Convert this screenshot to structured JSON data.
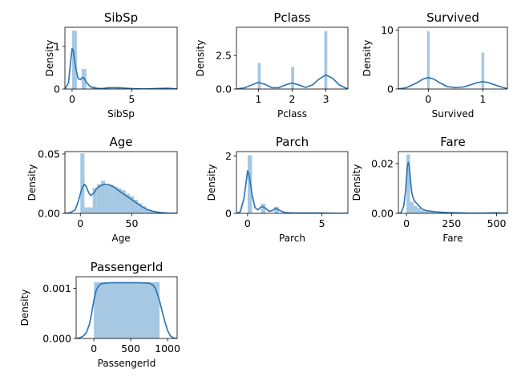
{
  "chart_data": [
    {
      "type": "bar",
      "title": "SibSp",
      "xlabel": "SibSp",
      "ylabel": "Density",
      "xlim": [
        -0.6,
        8.8
      ],
      "ylim": [
        0,
        1.45
      ],
      "xticks": [
        0,
        5
      ],
      "yticks": [
        0,
        1
      ],
      "bars": [
        {
          "x0": 0.0,
          "x1": 0.4,
          "h": 1.37
        },
        {
          "x0": 0.8,
          "x1": 1.2,
          "h": 0.47
        },
        {
          "x0": 1.6,
          "x1": 2.0,
          "h": 0.06
        },
        {
          "x0": 2.8,
          "x1": 3.2,
          "h": 0.04
        },
        {
          "x0": 3.6,
          "x1": 4.0,
          "h": 0.05
        },
        {
          "x0": 4.8,
          "x1": 5.2,
          "h": 0.02
        },
        {
          "x0": 7.6,
          "x1": 8.0,
          "h": 0.02
        }
      ],
      "kde": {
        "x": [
          -0.6,
          -0.3,
          -0.1,
          0.0,
          0.1,
          0.3,
          0.5,
          0.7,
          0.85,
          1.0,
          1.2,
          1.5,
          2.0,
          2.5,
          3.0,
          3.5,
          4.0,
          4.5,
          5.0,
          6.0,
          7.0,
          8.0,
          8.8
        ],
        "y": [
          0.0,
          0.15,
          0.7,
          0.95,
          0.9,
          0.5,
          0.25,
          0.22,
          0.27,
          0.26,
          0.16,
          0.06,
          0.02,
          0.01,
          0.03,
          0.03,
          0.03,
          0.02,
          0.01,
          0.0,
          0.01,
          0.02,
          0.0
        ]
      }
    },
    {
      "type": "bar",
      "title": "Pclass",
      "xlabel": "Pclass",
      "ylabel": "Density",
      "xlim": [
        0.35,
        3.65
      ],
      "ylim": [
        0,
        4.6
      ],
      "xticks": [
        1,
        2,
        3
      ],
      "yticks": [
        0.0,
        2.5
      ],
      "ytick_labels": [
        "0.0",
        "2.5"
      ],
      "bars": [
        {
          "x0": 0.98,
          "x1": 1.07,
          "h": 1.95
        },
        {
          "x0": 1.97,
          "x1": 2.06,
          "h": 1.65
        },
        {
          "x0": 2.95,
          "x1": 3.04,
          "h": 4.3
        }
      ],
      "kde": {
        "x": [
          0.35,
          0.6,
          0.8,
          1.0,
          1.2,
          1.4,
          1.6,
          1.8,
          2.0,
          2.2,
          2.4,
          2.6,
          2.8,
          3.0,
          3.2,
          3.4,
          3.65
        ],
        "y": [
          0.0,
          0.1,
          0.3,
          0.5,
          0.35,
          0.1,
          0.1,
          0.3,
          0.45,
          0.3,
          0.12,
          0.3,
          0.75,
          1.05,
          0.8,
          0.3,
          0.0
        ]
      }
    },
    {
      "type": "bar",
      "title": "Survived",
      "xlabel": "Survived",
      "ylabel": "Density",
      "xlim": [
        -0.55,
        1.45
      ],
      "ylim": [
        0,
        10.5
      ],
      "xticks": [
        0,
        1
      ],
      "yticks": [
        0,
        10
      ],
      "bars": [
        {
          "x0": -0.025,
          "x1": 0.025,
          "h": 9.8
        },
        {
          "x0": 0.975,
          "x1": 1.025,
          "h": 6.2
        }
      ],
      "kde": {
        "x": [
          -0.55,
          -0.4,
          -0.2,
          -0.1,
          0.0,
          0.1,
          0.2,
          0.35,
          0.5,
          0.65,
          0.8,
          0.9,
          1.0,
          1.1,
          1.25,
          1.45
        ],
        "y": [
          0.0,
          0.25,
          1.1,
          1.7,
          1.95,
          1.7,
          1.1,
          0.4,
          0.25,
          0.35,
          0.8,
          1.1,
          1.25,
          1.1,
          0.6,
          0.05
        ]
      }
    },
    {
      "type": "bar",
      "title": "Age",
      "xlabel": "Age",
      "ylabel": "Density",
      "xlim": [
        -15,
        94
      ],
      "ylim": [
        0,
        0.052
      ],
      "xticks": [
        0,
        50
      ],
      "yticks": [
        0.0,
        0.05
      ],
      "ytick_labels": [
        "0.00",
        "0.05"
      ],
      "bars": [
        {
          "x0": 0,
          "x1": 4,
          "h": 0.0505
        },
        {
          "x0": 4,
          "x1": 8,
          "h": 0.005
        },
        {
          "x0": 8,
          "x1": 12,
          "h": 0.005
        },
        {
          "x0": 12,
          "x1": 16,
          "h": 0.0215
        },
        {
          "x0": 16,
          "x1": 20,
          "h": 0.0245
        },
        {
          "x0": 20,
          "x1": 24,
          "h": 0.0275
        },
        {
          "x0": 24,
          "x1": 28,
          "h": 0.0235
        },
        {
          "x0": 28,
          "x1": 32,
          "h": 0.024
        },
        {
          "x0": 32,
          "x1": 36,
          "h": 0.0225
        },
        {
          "x0": 36,
          "x1": 40,
          "h": 0.021
        },
        {
          "x0": 40,
          "x1": 44,
          "h": 0.0195
        },
        {
          "x0": 44,
          "x1": 48,
          "h": 0.0165
        },
        {
          "x0": 48,
          "x1": 52,
          "h": 0.0145
        },
        {
          "x0": 52,
          "x1": 56,
          "h": 0.0115
        },
        {
          "x0": 56,
          "x1": 60,
          "h": 0.0085
        },
        {
          "x0": 60,
          "x1": 64,
          "h": 0.006
        },
        {
          "x0": 64,
          "x1": 68,
          "h": 0.0035
        },
        {
          "x0": 68,
          "x1": 72,
          "h": 0.002
        },
        {
          "x0": 72,
          "x1": 76,
          "h": 0.0015
        },
        {
          "x0": 76,
          "x1": 80,
          "h": 0.0008
        }
      ],
      "kde": {
        "x": [
          -15,
          -10,
          -5,
          -2,
          0,
          2,
          4,
          6,
          8,
          10,
          13,
          16,
          20,
          24,
          28,
          32,
          36,
          40,
          45,
          50,
          55,
          60,
          65,
          70,
          75,
          80,
          86,
          94
        ],
        "y": [
          0.0,
          0.0005,
          0.003,
          0.01,
          0.0165,
          0.022,
          0.0245,
          0.022,
          0.0175,
          0.015,
          0.017,
          0.021,
          0.0235,
          0.0245,
          0.024,
          0.0225,
          0.02,
          0.0175,
          0.0145,
          0.0115,
          0.0085,
          0.0055,
          0.0032,
          0.0018,
          0.001,
          0.0005,
          0.0002,
          0.0
        ]
      }
    },
    {
      "type": "bar",
      "title": "Parch",
      "xlabel": "Parch",
      "ylabel": "Density",
      "xlim": [
        -0.75,
        6.75
      ],
      "ylim": [
        0,
        2.15
      ],
      "xticks": [
        0,
        5
      ],
      "yticks": [
        0,
        2
      ],
      "bars": [
        {
          "x0": 0.0,
          "x1": 0.3,
          "h": 2.02
        },
        {
          "x0": 0.9,
          "x1": 1.2,
          "h": 0.34
        },
        {
          "x0": 1.8,
          "x1": 2.1,
          "h": 0.23
        },
        {
          "x0": 2.7,
          "x1": 3.0,
          "h": 0.02
        },
        {
          "x0": 4.8,
          "x1": 5.1,
          "h": 0.02
        }
      ],
      "kde": {
        "x": [
          -0.75,
          -0.5,
          -0.25,
          -0.1,
          0.0,
          0.1,
          0.3,
          0.5,
          0.7,
          0.85,
          1.0,
          1.2,
          1.45,
          1.7,
          1.85,
          2.0,
          2.2,
          2.5,
          3.0,
          4.0,
          5.0,
          6.0,
          6.75
        ],
        "y": [
          0.0,
          0.05,
          0.5,
          1.1,
          1.48,
          1.35,
          0.65,
          0.2,
          0.12,
          0.2,
          0.24,
          0.18,
          0.07,
          0.1,
          0.17,
          0.15,
          0.09,
          0.03,
          0.01,
          0.01,
          0.01,
          0.0,
          0.0
        ]
      }
    },
    {
      "type": "bar",
      "title": "Fare",
      "xlabel": "Fare",
      "ylabel": "Density",
      "xlim": [
        -45,
        560
      ],
      "ylim": [
        0,
        0.0248
      ],
      "xticks": [
        0,
        250,
        500
      ],
      "yticks": [
        0.0,
        0.02
      ],
      "ytick_labels": [
        "0.00",
        "0.02"
      ],
      "bars": [
        {
          "x0": 0,
          "x1": 20,
          "h": 0.0237
        },
        {
          "x0": 20,
          "x1": 40,
          "h": 0.0046
        },
        {
          "x0": 40,
          "x1": 60,
          "h": 0.003
        },
        {
          "x0": 60,
          "x1": 80,
          "h": 0.0022
        },
        {
          "x0": 80,
          "x1": 100,
          "h": 0.0012
        },
        {
          "x0": 100,
          "x1": 120,
          "h": 0.0008
        },
        {
          "x0": 120,
          "x1": 140,
          "h": 0.0006
        },
        {
          "x0": 140,
          "x1": 160,
          "h": 0.0004
        },
        {
          "x0": 200,
          "x1": 220,
          "h": 0.0003
        },
        {
          "x0": 240,
          "x1": 260,
          "h": 0.0003
        },
        {
          "x0": 500,
          "x1": 520,
          "h": 0.0002
        }
      ],
      "kde": {
        "x": [
          -45,
          -30,
          -15,
          -5,
          0,
          5,
          10,
          15,
          20,
          25,
          30,
          40,
          50,
          60,
          70,
          80,
          90,
          110,
          130,
          160,
          200,
          240,
          280,
          350,
          420,
          500,
          560
        ],
        "y": [
          0.0,
          0.0003,
          0.003,
          0.009,
          0.014,
          0.019,
          0.0205,
          0.019,
          0.015,
          0.011,
          0.008,
          0.0055,
          0.0045,
          0.0038,
          0.003,
          0.0022,
          0.0016,
          0.0011,
          0.0009,
          0.0006,
          0.0004,
          0.0003,
          0.0002,
          0.0001,
          0.0001,
          0.0002,
          0.0
        ]
      }
    },
    {
      "type": "bar",
      "title": "PassengerId",
      "xlabel": "PassengerId",
      "ylabel": "Density",
      "xlim": [
        -240,
        1130
      ],
      "ylim": [
        0,
        0.00123
      ],
      "xticks": [
        0,
        500,
        1000
      ],
      "yticks": [
        0.0,
        0.001
      ],
      "ytick_labels": [
        "0.000",
        "0.001"
      ],
      "bars": [
        {
          "x0": 1,
          "x1": 891,
          "h": 0.00112
        }
      ],
      "kde": {
        "x": [
          -240,
          -200,
          -150,
          -100,
          -60,
          -30,
          0,
          30,
          60,
          100,
          150,
          250,
          400,
          600,
          750,
          800,
          840,
          870,
          900,
          930,
          960,
          1000,
          1040,
          1080,
          1130
        ],
        "y": [
          0.0,
          1e-05,
          4e-05,
          0.00012,
          0.00028,
          0.0005,
          0.00076,
          0.00095,
          0.00104,
          0.00109,
          0.0011,
          0.00111,
          0.00111,
          0.00111,
          0.0011,
          0.00107,
          0.00098,
          0.00085,
          0.0007,
          0.00052,
          0.00035,
          0.00016,
          5e-05,
          1e-05,
          0.0
        ]
      }
    }
  ]
}
